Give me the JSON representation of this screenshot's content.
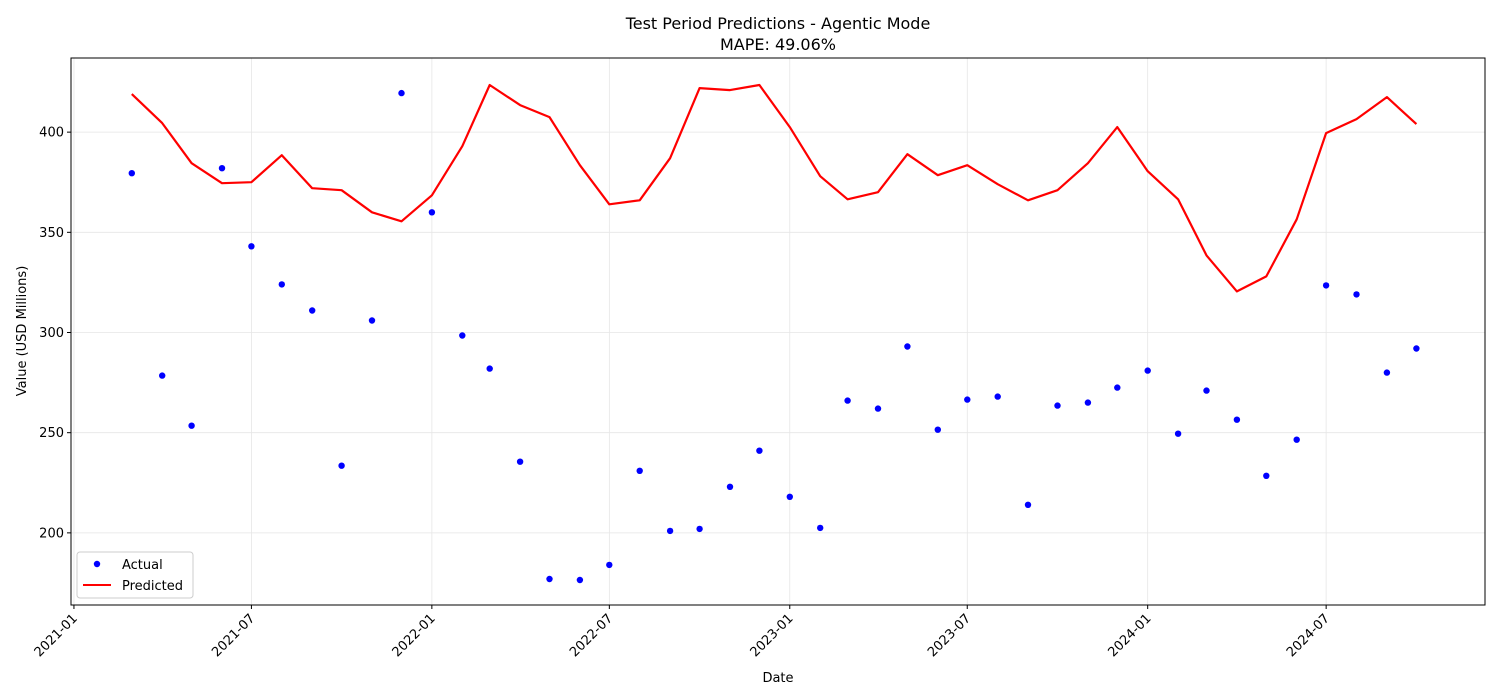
{
  "chart_data": {
    "type": "line",
    "title": "Test Period Predictions - Agentic Mode",
    "subtitle": "MAPE: 49.06%",
    "xlabel": "Date",
    "ylabel": "Value (USD Millions)",
    "x_ticks": [
      "2021-01",
      "2021-07",
      "2022-01",
      "2022-07",
      "2023-01",
      "2023-07",
      "2024-01",
      "2024-07"
    ],
    "y_ticks": [
      200,
      250,
      300,
      350,
      400
    ],
    "ylim": [
      164,
      437
    ],
    "xlim": [
      "2020-12-29",
      "2024-12-10"
    ],
    "grid": true,
    "legend_position": "lower-left",
    "colors": {
      "actual": "#0000ff",
      "predicted": "#ff0000"
    },
    "x": [
      "2021-03-01",
      "2021-04-01",
      "2021-05-01",
      "2021-06-01",
      "2021-07-01",
      "2021-08-01",
      "2021-09-01",
      "2021-10-01",
      "2021-11-01",
      "2021-12-01",
      "2022-01-01",
      "2022-02-01",
      "2022-03-01",
      "2022-04-01",
      "2022-05-01",
      "2022-06-01",
      "2022-07-01",
      "2022-08-01",
      "2022-09-01",
      "2022-10-01",
      "2022-11-01",
      "2022-12-01",
      "2023-01-01",
      "2023-02-01",
      "2023-03-01",
      "2023-04-01",
      "2023-05-01",
      "2023-06-01",
      "2023-07-01",
      "2023-08-01",
      "2023-09-01",
      "2023-10-01",
      "2023-11-01",
      "2023-12-01",
      "2024-01-01",
      "2024-02-01",
      "2024-03-01",
      "2024-04-01",
      "2024-05-01",
      "2024-06-01",
      "2024-07-01",
      "2024-08-01",
      "2024-09-01",
      "2024-10-01"
    ],
    "series": [
      {
        "name": "Actual",
        "style": "scatter",
        "values": [
          379.5,
          278.5,
          253.5,
          382,
          343,
          324,
          311,
          233.5,
          306,
          419.5,
          360,
          298.5,
          282,
          235.5,
          177,
          176.5,
          184,
          231,
          201,
          202,
          223,
          241,
          218,
          202.5,
          266,
          262,
          293,
          251.5,
          266.5,
          268,
          214,
          263.5,
          265,
          272.5,
          281,
          249.5,
          271,
          256.5,
          228.5,
          246.5,
          323.5,
          319,
          280,
          292
        ]
      },
      {
        "name": "Predicted",
        "style": "line",
        "values": [
          419,
          404.5,
          384.5,
          374.5,
          375,
          388.5,
          372,
          371,
          360,
          355.5,
          368.5,
          393,
          423.5,
          413.5,
          407.5,
          383.5,
          364,
          366,
          387,
          422,
          421,
          423.5,
          402.5,
          378,
          366.5,
          370,
          389,
          378.5,
          383.5,
          374,
          366,
          371,
          384.5,
          402.5,
          380.5,
          366.5,
          338.5,
          320.5,
          328,
          356.5,
          399.5,
          406.5,
          417.5,
          404
        ]
      }
    ]
  }
}
